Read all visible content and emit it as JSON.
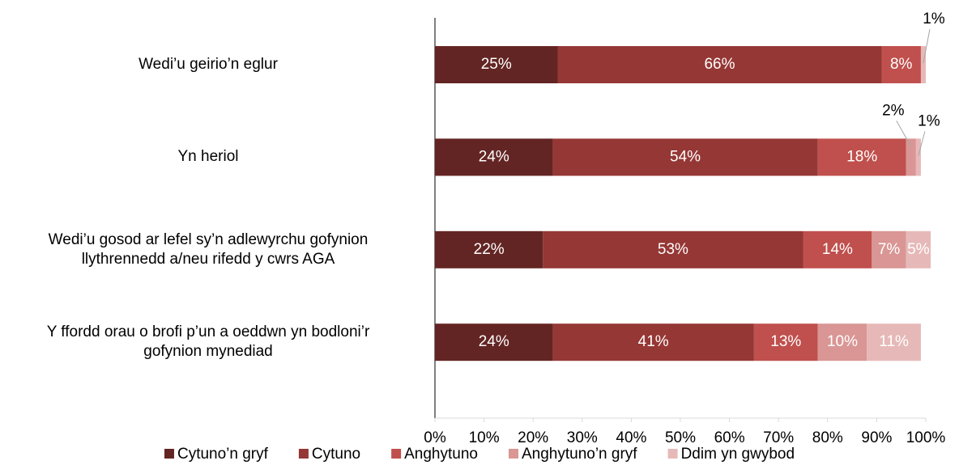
{
  "chart_data": {
    "type": "stacked-bar-horizontal",
    "categories": [
      "Wedi’u geirio’n eglur",
      "Yn heriol",
      "Wedi’u gosod ar lefel sy’n adlewyrchu gofynion\nllythrennedd a/neu rifedd y cwrs AGA",
      "Y ffordd orau o brofi p’un a oeddwn yn bodloni’r\ngofynion mynediad"
    ],
    "series": [
      {
        "name": "Cytuno’n gryf",
        "color": "#632523",
        "values": [
          25,
          24,
          22,
          24
        ],
        "value_labels": [
          "25%",
          "24%",
          "22%",
          "24%"
        ]
      },
      {
        "name": "Cytuno",
        "color": "#953735",
        "values": [
          66,
          54,
          53,
          41
        ],
        "value_labels": [
          "66%",
          "54%",
          "53%",
          "41%"
        ]
      },
      {
        "name": "Anghytuno",
        "color": "#c0504d",
        "values": [
          8,
          18,
          14,
          13
        ],
        "value_labels": [
          "8%",
          "18%",
          "14%",
          "13%"
        ]
      },
      {
        "name": "Anghytuno’n gryf",
        "color": "#d99694",
        "values": [
          null,
          2,
          7,
          10
        ],
        "value_labels": [
          null,
          "2%",
          "7%",
          "10%"
        ]
      },
      {
        "name": "Ddim yn gwybod",
        "color": "#e6b9b8",
        "values": [
          1,
          1,
          5,
          11
        ],
        "value_labels": [
          "1%",
          "1%",
          "5%",
          "11%"
        ]
      }
    ],
    "xlim": [
      0,
      100
    ],
    "xticks": [
      {
        "value": 0,
        "label": "0%"
      },
      {
        "value": 10,
        "label": "10%"
      },
      {
        "value": 20,
        "label": "20%"
      },
      {
        "value": 30,
        "label": "30%"
      },
      {
        "value": 40,
        "label": "40%"
      },
      {
        "value": 50,
        "label": "50%"
      },
      {
        "value": 60,
        "label": "60%"
      },
      {
        "value": 70,
        "label": "70%"
      },
      {
        "value": 80,
        "label": "80%"
      },
      {
        "value": 90,
        "label": "90%"
      },
      {
        "value": 100,
        "label": "100%"
      }
    ],
    "legend": "bottom"
  }
}
